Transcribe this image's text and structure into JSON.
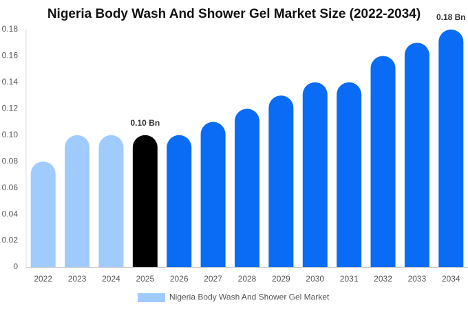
{
  "chart_data": {
    "type": "bar",
    "title": "Nigeria Body Wash And Shower Gel Market Size (2022-2034)",
    "categories": [
      "2022",
      "2023",
      "2024",
      "2025",
      "2026",
      "2027",
      "2028",
      "2029",
      "2030",
      "2031",
      "2032",
      "2033",
      "2034"
    ],
    "series": [
      {
        "name": "Nigeria Body Wash And Shower Gel Market",
        "color": "#a0cbff",
        "values": [
          0.08,
          0.1,
          0.1,
          0.1,
          0.1,
          0.11,
          0.12,
          0.13,
          0.14,
          0.14,
          0.16,
          0.17,
          0.18
        ],
        "colors": [
          "#a0cbff",
          "#a0cbff",
          "#a0cbff",
          "#000000",
          "#0a6cf5",
          "#0a6cf5",
          "#0a6cf5",
          "#0a6cf5",
          "#0a6cf5",
          "#0a6cf5",
          "#0a6cf5",
          "#0a6cf5",
          "#0a6cf5"
        ],
        "value_labels": [
          null,
          null,
          null,
          "0.10 Bn",
          null,
          null,
          null,
          null,
          null,
          null,
          null,
          null,
          "0.18 Bn"
        ]
      }
    ],
    "ylim": [
      0,
      0.18
    ],
    "yticks": [
      0,
      0.02,
      0.04,
      0.06,
      0.08,
      {
        "value": 0.1,
        "label": "0.10"
      },
      0.12,
      0.14,
      0.16,
      0.18
    ],
    "grid": false
  }
}
